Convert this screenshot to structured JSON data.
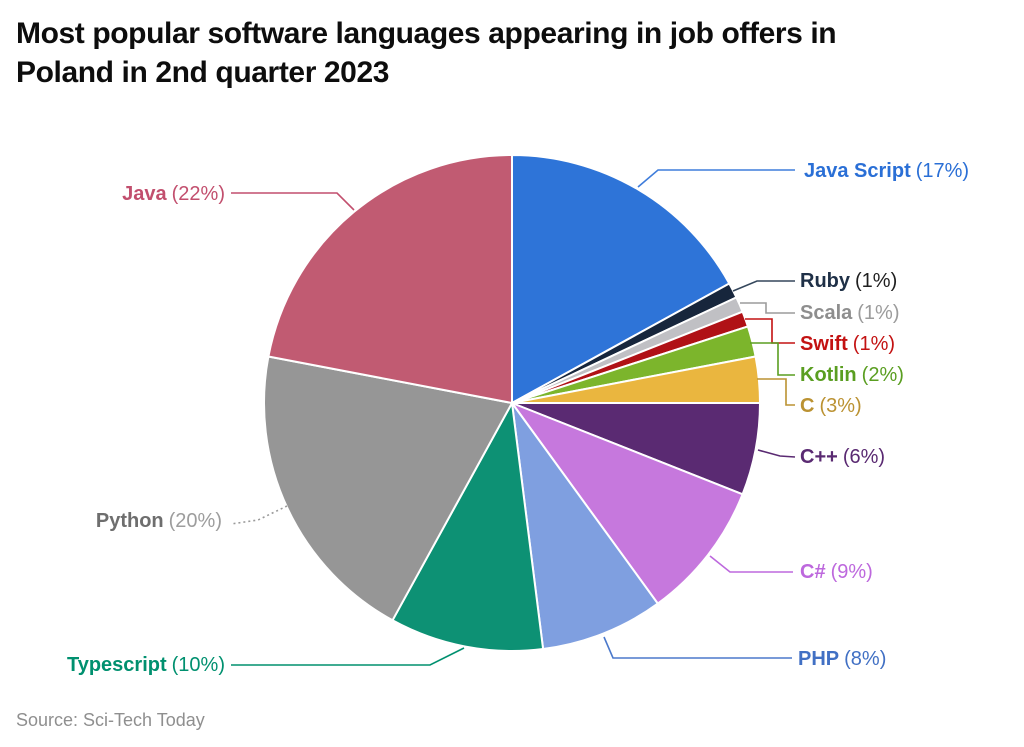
{
  "title_lines": [
    "Most popular software languages appearing in job offers in",
    "Poland in 2nd quarter 2023"
  ],
  "source": "Source: Sci-Tech Today",
  "chart_data": {
    "type": "pie",
    "title": "Most popular software languages appearing in job offers in Poland in 2nd quarter 2023",
    "start_angle_deg": 0,
    "direction": "clockwise",
    "unit": "%",
    "legend_position": "callout-labels",
    "slices": [
      {
        "id": "java-script",
        "name": "Java Script",
        "value": 17,
        "pct_label": "(17%)",
        "color": "#2e74d8",
        "label_color": "#2a6fd6",
        "line_color": "#3f7ddb"
      },
      {
        "id": "ruby",
        "name": "Ruby",
        "value": 1,
        "pct_label": "(1%)",
        "color": "#17263c",
        "label_color": "#1f3047",
        "pct_color": "#1f1f1f",
        "line_color": "#35475c"
      },
      {
        "id": "scala",
        "name": "Scala",
        "value": 1,
        "pct_label": "(1%)",
        "color": "#c0c0c4",
        "label_color": "#8e8e8e",
        "pct_color": "#9b9b9b",
        "line_color": "#9c9c9c"
      },
      {
        "id": "swift",
        "name": "Swift",
        "value": 1,
        "pct_label": "(1%)",
        "color": "#b01116",
        "label_color": "#c31212"
      },
      {
        "id": "kotlin",
        "name": "Kotlin",
        "value": 2,
        "pct_label": "(2%)",
        "color": "#7cb52c",
        "label_color": "#5a9e21"
      },
      {
        "id": "c",
        "name": "C",
        "value": 3,
        "pct_label": "(3%)",
        "color": "#eab63f",
        "label_color": "#bb9232"
      },
      {
        "id": "c-plus-plus",
        "name": "C++",
        "value": 6,
        "pct_label": "(6%)",
        "color": "#5a2a72",
        "label_color": "#5a2a72"
      },
      {
        "id": "c-sharp",
        "name": "C#",
        "value": 9,
        "pct_label": "(9%)",
        "color": "#c678dd",
        "label_color": "#bd68dd"
      },
      {
        "id": "php",
        "name": "PHP",
        "value": 8,
        "pct_label": "(8%)",
        "color": "#7f9fe0",
        "label_color": "#4170c4",
        "line_color": "#4b79cb"
      },
      {
        "id": "typescript",
        "name": "Typescript",
        "value": 10,
        "pct_label": "(10%)",
        "color": "#0d9174",
        "label_color": "#00906f"
      },
      {
        "id": "python",
        "name": "Python",
        "value": 20,
        "pct_label": "(20%)",
        "color": "#969696",
        "label_color": "#6e6e6e",
        "pct_color": "#9d9d9d",
        "line_color": "#9a9a9a"
      },
      {
        "id": "java",
        "name": "Java",
        "value": 22,
        "pct_label": "(22%)",
        "color": "#c15b72",
        "label_color": "#c24f6e"
      }
    ]
  }
}
